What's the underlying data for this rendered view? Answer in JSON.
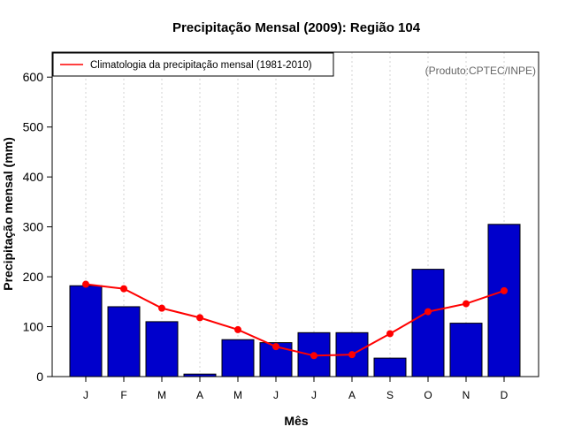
{
  "chart_data": {
    "type": "bar",
    "title": "Precipitação Mensal (2009): Região 104",
    "xlabel": "Mês",
    "ylabel": "Precipitação mensal (mm)",
    "ylim": [
      0,
      650
    ],
    "yticks": [
      0,
      100,
      200,
      300,
      400,
      500,
      600
    ],
    "categories": [
      "J",
      "F",
      "M",
      "A",
      "M",
      "J",
      "J",
      "A",
      "S",
      "O",
      "N",
      "D"
    ],
    "series": [
      {
        "name": "Precipitação mensal (2009)",
        "type": "bar",
        "values": [
          182,
          140,
          110,
          5,
          74,
          68,
          88,
          88,
          37,
          215,
          107,
          305
        ],
        "color": "#0000cc"
      },
      {
        "name": "Climatologia da precipitação mensal (1981-2010)",
        "type": "line",
        "values": [
          185,
          176,
          137,
          118,
          94,
          60,
          42,
          44,
          86,
          130,
          146,
          172
        ],
        "color": "#ff0000"
      }
    ],
    "legend": {
      "position": "top-left",
      "label": "Climatologia da precipitação mensal (1981-2010)"
    },
    "annotation": "(Produto:CPTEC/INPE)",
    "grid": "vertical dotted"
  }
}
